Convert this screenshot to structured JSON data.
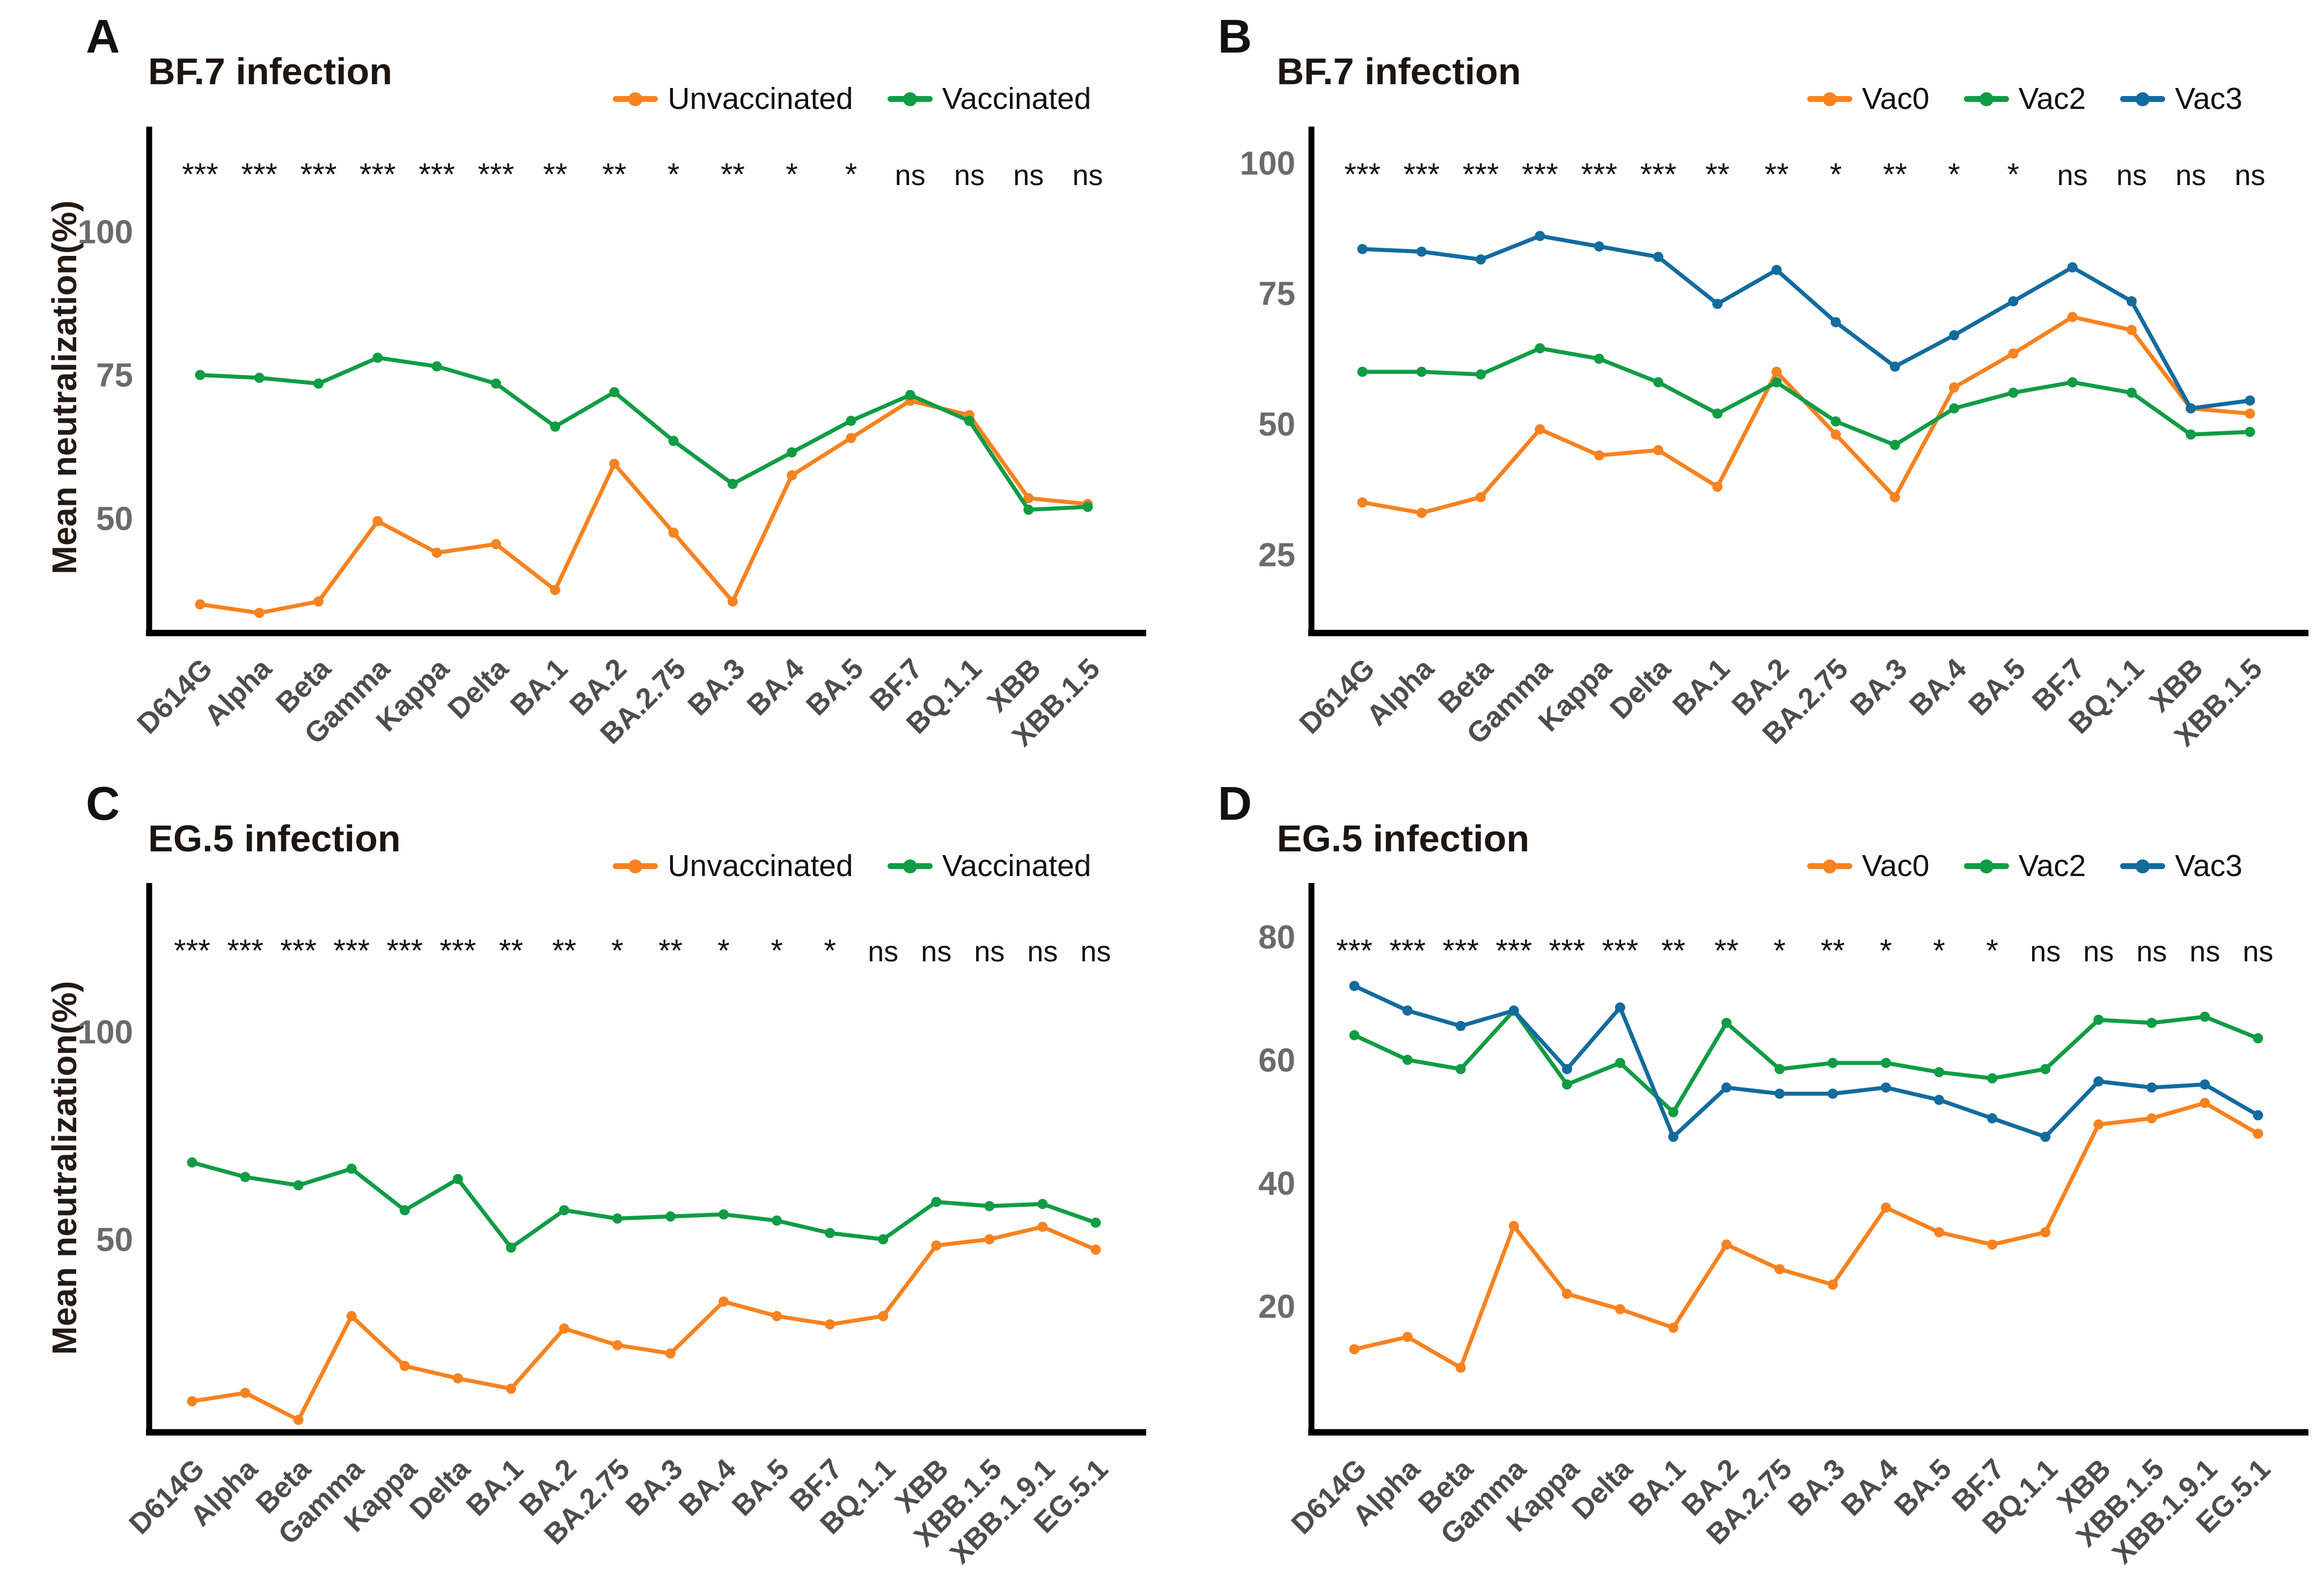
{
  "figure_title": "",
  "colors": {
    "orange": "#F8821F",
    "green": "#109C44",
    "blue": "#136B9E",
    "axis_line": "#000000",
    "y_tick_label": "#6b6b6b",
    "x_category_label": "#4d4d4d",
    "significance_text": "#111111",
    "title_text": "#1c1510"
  },
  "chart_data": [
    {
      "type": "line",
      "panel_label": "A",
      "title": "BF.7 infection",
      "ylabel": "Mean neutralization(%)",
      "legend_position": "top-right",
      "grid": false,
      "ylim": [
        30,
        117
      ],
      "yticks": [
        50,
        75,
        100
      ],
      "categories": [
        "D614G",
        "Alpha",
        "Beta",
        "Gamma",
        "Kappa",
        "Delta",
        "BA.1",
        "BA.2",
        "BA.2.75",
        "BA.3",
        "BA.4",
        "BA.5",
        "BF.7",
        "BQ.1.1",
        "XBB",
        "XBB.1.5"
      ],
      "significance": [
        "***",
        "***",
        "***",
        "***",
        "***",
        "***",
        "**",
        "**",
        "*",
        "**",
        "*",
        "*",
        "ns",
        "ns",
        "ns",
        "ns"
      ],
      "series": [
        {
          "name": "Unvaccinated",
          "color": "#F8821F",
          "values": [
            35,
            33.5,
            35.5,
            49.5,
            44,
            45.5,
            37.5,
            59.5,
            47.5,
            35.5,
            57.5,
            64,
            70.5,
            68,
            53.5,
            52.5
          ]
        },
        {
          "name": "Vaccinated",
          "color": "#109C44",
          "values": [
            75,
            74.5,
            73.5,
            78,
            76.5,
            73.5,
            66,
            72,
            63.5,
            56,
            61.5,
            67,
            71.5,
            67,
            51.5,
            52
          ]
        }
      ]
    },
    {
      "type": "line",
      "panel_label": "B",
      "title": "BF.7 infection",
      "ylabel": "",
      "legend_position": "top-right",
      "grid": false,
      "ylim": [
        10,
        105.5
      ],
      "yticks": [
        25,
        50,
        75,
        100
      ],
      "categories": [
        "D614G",
        "Alpha",
        "Beta",
        "Gamma",
        "Kappa",
        "Delta",
        "BA.1",
        "BA.2",
        "BA.2.75",
        "BA.3",
        "BA.4",
        "BA.5",
        "BF.7",
        "BQ.1.1",
        "XBB",
        "XBB.1.5"
      ],
      "significance": [
        "***",
        "***",
        "***",
        "***",
        "***",
        "***",
        "**",
        "**",
        "*",
        "**",
        "*",
        "*",
        "ns",
        "ns",
        "ns",
        "ns"
      ],
      "series": [
        {
          "name": "Vac0",
          "color": "#F8821F",
          "values": [
            35,
            33,
            36,
            49,
            44,
            45,
            38,
            60,
            48,
            36,
            57,
            63.5,
            70.5,
            68,
            53,
            52
          ]
        },
        {
          "name": "Vac2",
          "color": "#109C44",
          "values": [
            60,
            60,
            59.5,
            64.5,
            62.5,
            58,
            52,
            58,
            50.5,
            46,
            53,
            56,
            58,
            56,
            48,
            48.5
          ]
        },
        {
          "name": "Vac3",
          "color": "#136B9E",
          "values": [
            83.5,
            83,
            81.5,
            86,
            84,
            82,
            73,
            79.5,
            69.5,
            61,
            67,
            73.5,
            80,
            73.5,
            53,
            54.5
          ]
        }
      ]
    },
    {
      "type": "line",
      "panel_label": "C",
      "title": "EG.5 infection",
      "ylabel": "Mean neutralization(%)",
      "legend_position": "top-right",
      "grid": false,
      "ylim": [
        3.5,
        134
      ],
      "yticks": [
        50,
        100
      ],
      "categories": [
        "D614G",
        "Alpha",
        "Beta",
        "Gamma",
        "Kappa",
        "Delta",
        "BA.1",
        "BA.2",
        "BA.2.75",
        "BA.3",
        "BA.4",
        "BA.5",
        "BF.7",
        "BQ.1.1",
        "XBB",
        "XBB.1.5",
        "XBB.1.9.1",
        "EG.5.1"
      ],
      "significance": [
        "***",
        "***",
        "***",
        "***",
        "***",
        "***",
        "**",
        "**",
        "*",
        "**",
        "*",
        "*",
        "*",
        "ns",
        "ns",
        "ns",
        "ns",
        "ns"
      ],
      "series": [
        {
          "name": "Unvaccinated",
          "color": "#F8821F",
          "values": [
            11,
            13,
            6.5,
            31.5,
            19.5,
            16.5,
            14,
            28.5,
            24.5,
            22.5,
            35,
            31.5,
            29.5,
            31.5,
            48.5,
            50,
            53,
            47.5
          ]
        },
        {
          "name": "Vaccinated",
          "color": "#109C44",
          "values": [
            68.5,
            65,
            63,
            67,
            57,
            64.5,
            48,
            57,
            55,
            55.5,
            56,
            54.5,
            51.5,
            50,
            59,
            58,
            58.5,
            54
          ]
        }
      ]
    },
    {
      "type": "line",
      "panel_label": "D",
      "title": "EG.5 infection",
      "ylabel": "",
      "legend_position": "top-right",
      "grid": false,
      "ylim": [
        -0.5,
        87.5
      ],
      "yticks": [
        20,
        40,
        60,
        80
      ],
      "categories": [
        "D614G",
        "Alpha",
        "Beta",
        "Gamma",
        "Kappa",
        "Delta",
        "BA.1",
        "BA.2",
        "BA.2.75",
        "BA.3",
        "BA.4",
        "BA.5",
        "BF.7",
        "BQ.1.1",
        "XBB",
        "XBB.1.5",
        "XBB.1.9.1",
        "EG.5.1"
      ],
      "significance": [
        "***",
        "***",
        "***",
        "***",
        "***",
        "***",
        "**",
        "**",
        "*",
        "**",
        "*",
        "*",
        "*",
        "ns",
        "ns",
        "ns",
        "ns",
        "ns"
      ],
      "series": [
        {
          "name": "Vac0",
          "color": "#F8821F",
          "values": [
            13,
            15,
            10,
            33,
            22,
            19.5,
            16.5,
            30,
            26,
            23.5,
            36,
            32,
            30,
            32,
            49.5,
            50.5,
            53,
            48
          ]
        },
        {
          "name": "Vac2",
          "color": "#109C44",
          "values": [
            64,
            60,
            58.5,
            68,
            56,
            59.5,
            51.5,
            66,
            58.5,
            59.5,
            59.5,
            58,
            57,
            58.5,
            66.5,
            66,
            67,
            63.5
          ]
        },
        {
          "name": "Vac3",
          "color": "#136B9E",
          "values": [
            72,
            68,
            65.5,
            68,
            58.5,
            68.5,
            47.5,
            55.5,
            54.5,
            54.5,
            55.5,
            53.5,
            50.5,
            47.5,
            56.5,
            55.5,
            56,
            51
          ]
        }
      ]
    }
  ]
}
